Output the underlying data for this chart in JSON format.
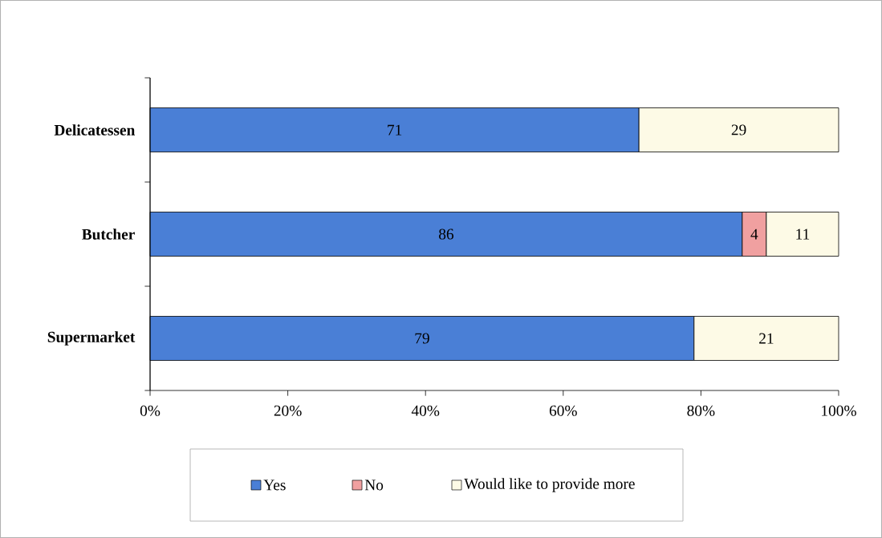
{
  "chart_data": {
    "type": "bar",
    "orientation": "horizontal",
    "stacked": true,
    "categories": [
      "Delicatessen",
      "Butcher",
      "Supermarket"
    ],
    "series": [
      {
        "name": "Yes",
        "color": "#4a7fd6",
        "values": [
          71,
          86,
          79
        ],
        "value_labels": [
          "71",
          "86",
          "79"
        ]
      },
      {
        "name": "No",
        "color": "#f0a0a0",
        "values": [
          null,
          3.5,
          null
        ],
        "value_labels": [
          null,
          "4",
          null
        ]
      },
      {
        "name": "Would like to provide more",
        "color": "#fdfae6",
        "values": [
          29,
          10.5,
          21
        ],
        "value_labels": [
          "29",
          "11",
          "21"
        ]
      }
    ],
    "xlim": [
      0,
      100
    ],
    "xticks": [
      {
        "value": 0,
        "label": "0%"
      },
      {
        "value": 20,
        "label": "20%"
      },
      {
        "value": 40,
        "label": "40%"
      },
      {
        "value": 60,
        "label": "60%"
      },
      {
        "value": 80,
        "label": "80%"
      },
      {
        "value": 100,
        "label": "100%"
      }
    ],
    "grid": false,
    "legend": "bottom"
  }
}
